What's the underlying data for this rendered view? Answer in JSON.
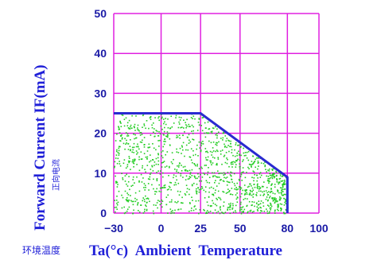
{
  "chart_data": {
    "type": "area",
    "x_ticks": [
      -30,
      0,
      25,
      50,
      80,
      100
    ],
    "y_ticks": [
      0,
      10,
      20,
      30,
      40,
      50
    ],
    "xlim": [
      -30,
      100
    ],
    "ylim": [
      0,
      50
    ],
    "grid": true,
    "series": [
      {
        "x": [
          -30,
          25,
          80,
          80
        ],
        "y": [
          25,
          25,
          9,
          0
        ]
      }
    ],
    "ylabel": "Forward Current  IF(mA)",
    "ylabel_sub": "正向电流",
    "xlabel_cn": "环境温度",
    "xlabel": "Ta(°c)  Ambient  Temperature"
  },
  "colors": {
    "grid": "#e020e0",
    "curve": "#2a2ad0",
    "fill_dots": "#22cc22",
    "text": "#2020d8"
  }
}
